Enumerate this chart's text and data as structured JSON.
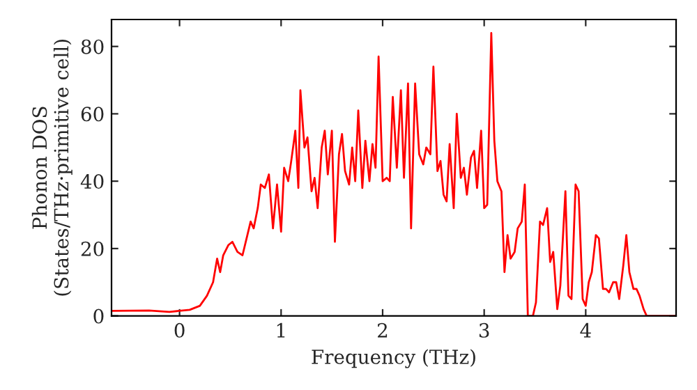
{
  "chart_data": {
    "type": "line",
    "xlabel": "Frequency (THz)",
    "ylabel": "Phonon DOS\n(States/THz·primitive cell)",
    "xlim": [
      -0.67,
      4.89
    ],
    "ylim": [
      0,
      88
    ],
    "xticks": [
      0,
      1,
      2,
      3,
      4
    ],
    "yticks": [
      0,
      20,
      40,
      60,
      80
    ],
    "grid": false,
    "legend": false,
    "series": [
      {
        "color": "#ff0000",
        "x": [
          -0.67,
          -0.3,
          -0.1,
          0.1,
          0.2,
          0.27,
          0.33,
          0.37,
          0.4,
          0.43,
          0.48,
          0.52,
          0.57,
          0.62,
          0.66,
          0.7,
          0.73,
          0.77,
          0.8,
          0.84,
          0.88,
          0.92,
          0.96,
          1.0,
          1.03,
          1.07,
          1.1,
          1.14,
          1.17,
          1.19,
          1.23,
          1.26,
          1.3,
          1.33,
          1.36,
          1.4,
          1.43,
          1.46,
          1.5,
          1.53,
          1.57,
          1.6,
          1.63,
          1.67,
          1.7,
          1.73,
          1.76,
          1.8,
          1.83,
          1.87,
          1.9,
          1.93,
          1.96,
          2.0,
          2.04,
          2.07,
          2.1,
          2.14,
          2.18,
          2.21,
          2.25,
          2.28,
          2.32,
          2.36,
          2.4,
          2.43,
          2.47,
          2.5,
          2.54,
          2.57,
          2.6,
          2.63,
          2.66,
          2.7,
          2.73,
          2.77,
          2.8,
          2.83,
          2.87,
          2.9,
          2.93,
          2.97,
          3.0,
          3.03,
          3.07,
          3.1,
          3.13,
          3.17,
          3.2,
          3.23,
          3.26,
          3.3,
          3.33,
          3.37,
          3.4,
          3.43,
          3.48,
          3.51,
          3.55,
          3.58,
          3.62,
          3.65,
          3.68,
          3.72,
          3.75,
          3.8,
          3.83,
          3.86,
          3.9,
          3.93,
          3.97,
          4.0,
          4.03,
          4.06,
          4.1,
          4.13,
          4.17,
          4.2,
          4.23,
          4.27,
          4.3,
          4.33,
          4.37,
          4.4,
          4.43,
          4.47,
          4.5,
          4.53,
          4.57,
          4.6,
          4.89
        ],
        "values": [
          1.5,
          1.6,
          1.2,
          1.8,
          3,
          6,
          10,
          17,
          13,
          18,
          21,
          22,
          19,
          18,
          23,
          28,
          26,
          32,
          39,
          38,
          42,
          26,
          39,
          25,
          44,
          40,
          46,
          55,
          38,
          67,
          50,
          53,
          37,
          41,
          32,
          50,
          55,
          42,
          55,
          22,
          48,
          54,
          43,
          39,
          50,
          40,
          61,
          38,
          52,
          40,
          51,
          44,
          77,
          40,
          41,
          40,
          65,
          44,
          67,
          41,
          69,
          26,
          69,
          48,
          45,
          50,
          48,
          74,
          43,
          46,
          36,
          34,
          51,
          32,
          60,
          41,
          44,
          36,
          47,
          49,
          38,
          55,
          32,
          33,
          84,
          52,
          40,
          37,
          13,
          24,
          17,
          19,
          26,
          28,
          39,
          0,
          0,
          4,
          28,
          27,
          32,
          16,
          19,
          2,
          9,
          37,
          6,
          5,
          39,
          37,
          5,
          3,
          10,
          13,
          24,
          23,
          8,
          8,
          7,
          10,
          10,
          5,
          15,
          24,
          13,
          8,
          8,
          6,
          2,
          0,
          0
        ]
      }
    ]
  }
}
